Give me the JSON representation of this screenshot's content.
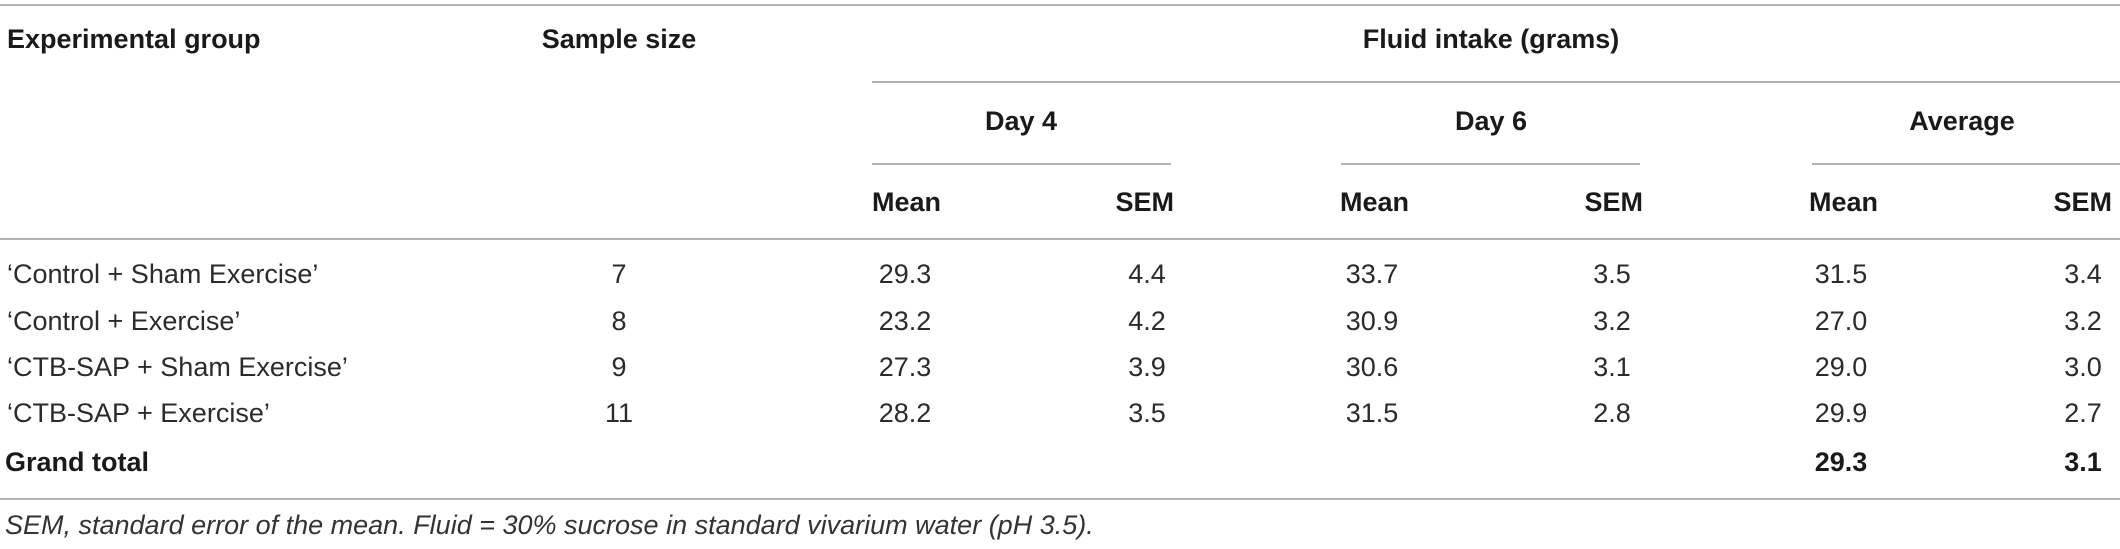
{
  "table": {
    "header": {
      "group": "Experimental group",
      "sample_size": "Sample size",
      "fluid_intake": "Fluid intake (grams)",
      "periods": [
        "Day 4",
        "Day 6",
        "Average"
      ],
      "stats": [
        "Mean",
        "SEM",
        "Mean",
        "SEM",
        "Mean",
        "SEM"
      ]
    },
    "rows": [
      [
        "‘Control + Sham Exercise’",
        "7",
        "29.3",
        "4.4",
        "33.7",
        "3.5",
        "31.5",
        "3.4"
      ],
      [
        "‘Control + Exercise’",
        "8",
        "23.2",
        "4.2",
        "30.9",
        "3.2",
        "27.0",
        "3.2"
      ],
      [
        "‘CTB-SAP + Sham Exercise’",
        "9",
        "27.3",
        "3.9",
        "30.6",
        "3.1",
        "29.0",
        "3.0"
      ],
      [
        "‘CTB-SAP + Exercise’",
        "11",
        "28.2",
        "3.5",
        "31.5",
        "2.8",
        "29.9",
        "2.7"
      ]
    ],
    "total": {
      "label": "Grand total",
      "mean": "29.3",
      "sem": "3.1"
    },
    "footnote": "SEM, standard error of the mean. Fluid = 30% sucrose in standard vivarium water (pH 3.5)."
  }
}
